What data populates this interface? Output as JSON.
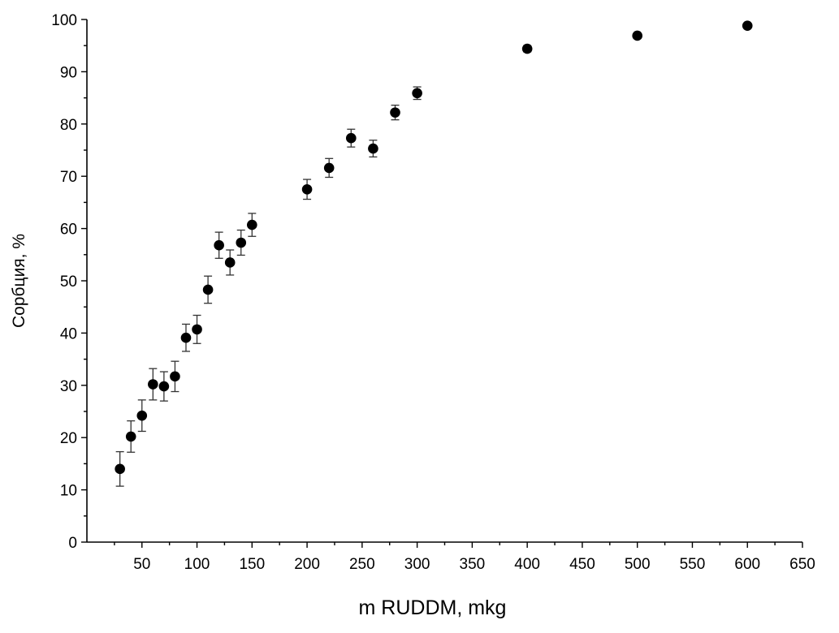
{
  "chart_data": {
    "type": "scatter",
    "title": "",
    "xlabel": "m RUDDM, mkg",
    "ylabel": "Сорбция, %",
    "xlim": [
      0,
      650
    ],
    "ylim": [
      0,
      100
    ],
    "x_ticks": [
      50,
      100,
      150,
      200,
      250,
      300,
      350,
      400,
      450,
      500,
      550,
      600,
      650
    ],
    "y_ticks": [
      0,
      10,
      20,
      30,
      40,
      50,
      60,
      70,
      80,
      90,
      100
    ],
    "grid": false,
    "colors": {
      "marker": "#000000",
      "error_bar": "#333333"
    },
    "series": [
      {
        "x": [
          30,
          40,
          50,
          60,
          70,
          80,
          90,
          100,
          110,
          120,
          130,
          140,
          150,
          200,
          220,
          240,
          260,
          280,
          300,
          400,
          500,
          600
        ],
        "y": [
          14.0,
          20.2,
          24.2,
          30.2,
          29.8,
          31.7,
          39.1,
          40.7,
          48.3,
          56.8,
          53.5,
          57.3,
          60.7,
          67.5,
          71.6,
          77.3,
          75.3,
          82.2,
          85.9,
          94.4,
          96.9,
          98.8
        ],
        "error": [
          3.3,
          3.0,
          3.0,
          3.0,
          2.8,
          2.9,
          2.6,
          2.7,
          2.6,
          2.5,
          2.4,
          2.4,
          2.2,
          1.9,
          1.8,
          1.7,
          1.6,
          1.4,
          1.2,
          0.6,
          0.4,
          0.3
        ]
      }
    ]
  }
}
